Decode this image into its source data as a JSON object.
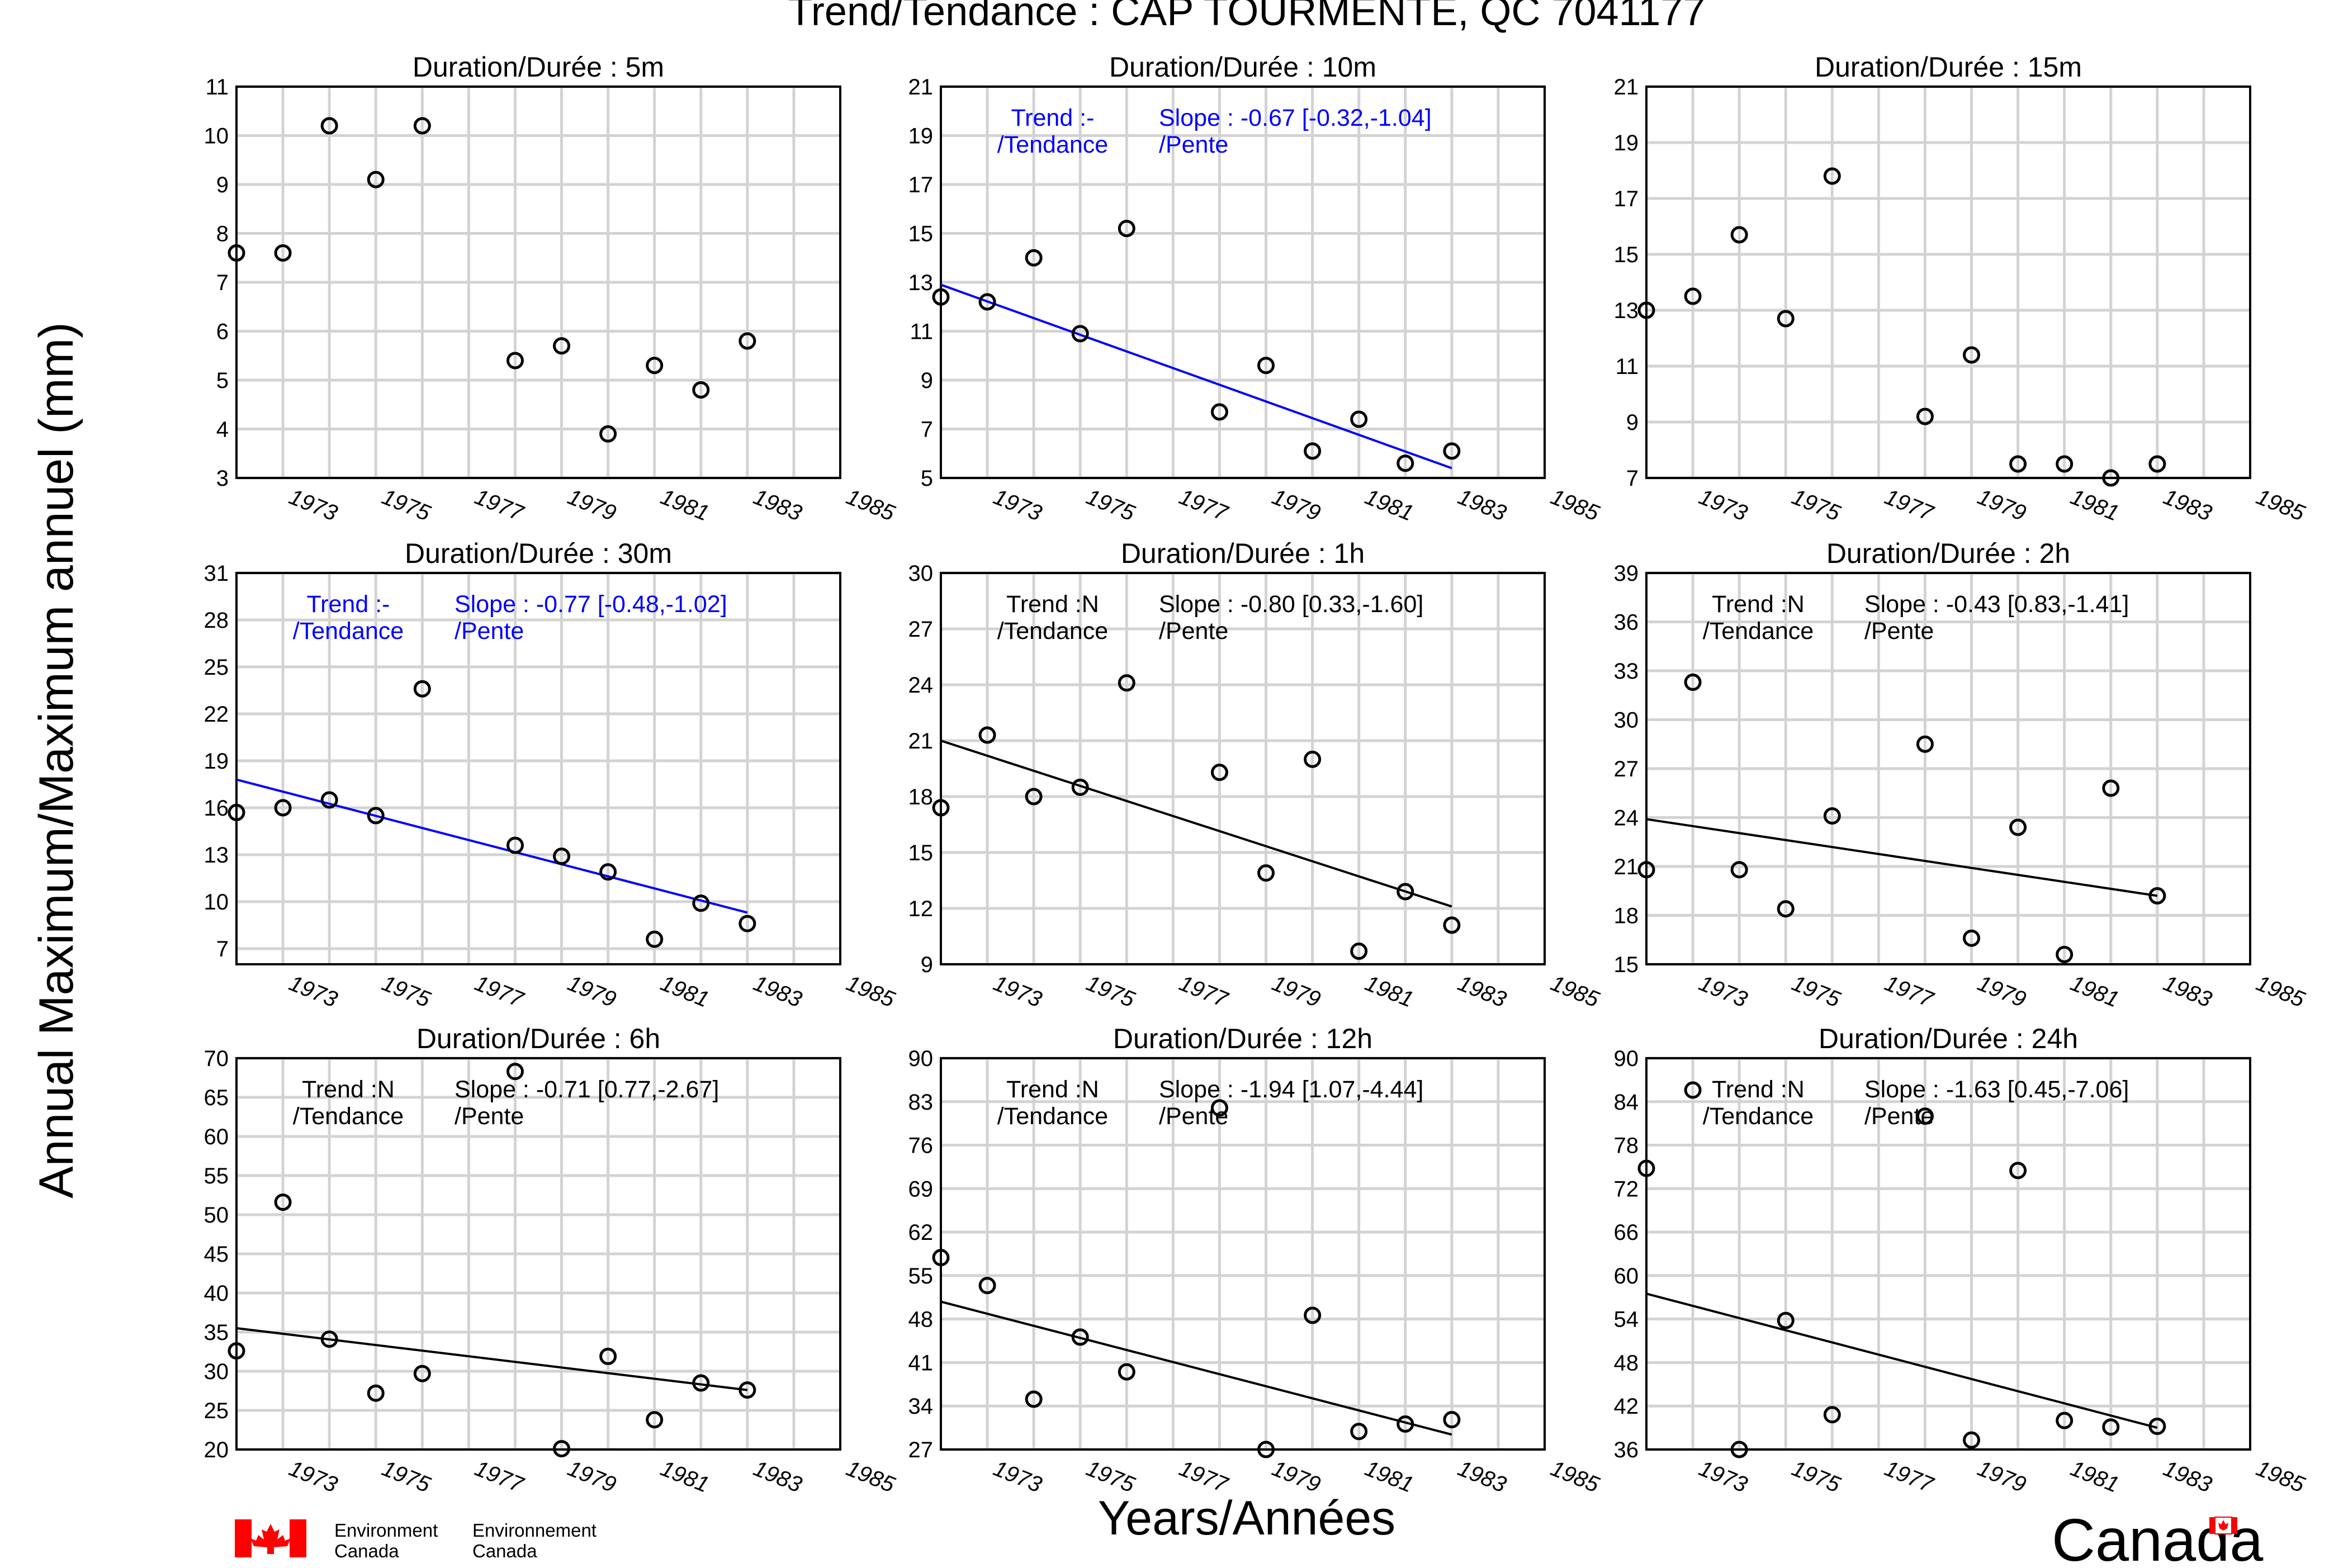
{
  "title": "Trend/Tendance : CAP TOURMENTE, QC  7041177",
  "ylabel": "Annual Maximum/Maximum annuel (mm)",
  "xlabel": "Years/Années",
  "x_ticks": [
    "1973",
    "1975",
    "1977",
    "1979",
    "1981",
    "1983",
    "1985"
  ],
  "footer": {
    "dept_en_1": "Environment",
    "dept_en_2": "Canada",
    "dept_fr_1": "Environnement",
    "dept_fr_2": "Canada",
    "wordmark": "Canada"
  },
  "colors": {
    "trend_significant": "#0000ff",
    "trend_ns": "#000000",
    "grid": "#d3d3d3",
    "flag_red": "#ff0000"
  },
  "chart_data": [
    {
      "type": "scatter",
      "title": "Duration/Durée : 5m",
      "xlim": [
        1972,
        1985
      ],
      "ylim": [
        3,
        11
      ],
      "yticks": [
        3,
        4,
        5,
        6,
        7,
        8,
        9,
        10,
        11
      ],
      "points": [
        [
          1972,
          7.6
        ],
        [
          1973,
          7.6
        ],
        [
          1974,
          10.2
        ],
        [
          1975,
          9.1
        ],
        [
          1976,
          10.2
        ],
        [
          1978,
          5.4
        ],
        [
          1979,
          5.7
        ],
        [
          1980,
          3.9
        ],
        [
          1981,
          5.3
        ],
        [
          1982,
          4.8
        ],
        [
          1983,
          5.8
        ]
      ],
      "trend": null
    },
    {
      "type": "scatter",
      "title": "Duration/Durée : 10m",
      "xlim": [
        1972,
        1985
      ],
      "ylim": [
        5,
        21
      ],
      "yticks": [
        5,
        7,
        9,
        11,
        13,
        15,
        17,
        19,
        21
      ],
      "points": [
        [
          1972,
          12.4
        ],
        [
          1973,
          12.2
        ],
        [
          1974,
          14.0
        ],
        [
          1975,
          10.9
        ],
        [
          1976,
          15.2
        ],
        [
          1978,
          7.7
        ],
        [
          1979,
          9.6
        ],
        [
          1980,
          6.1
        ],
        [
          1981,
          7.4
        ],
        [
          1982,
          5.6
        ],
        [
          1983,
          6.1
        ]
      ],
      "trend": {
        "label_1": "Trend :-",
        "label_2": "/Tendance",
        "slope_1": "Slope : -0.67 [-0.32,-1.04]",
        "slope_2": "/Pente",
        "significant": true,
        "y_start": 12.9,
        "y_end": 5.4
      }
    },
    {
      "type": "scatter",
      "title": "Duration/Durée : 15m",
      "xlim": [
        1972,
        1985
      ],
      "ylim": [
        7,
        21
      ],
      "yticks": [
        7,
        9,
        11,
        13,
        15,
        17,
        19,
        21
      ],
      "points": [
        [
          1972,
          13.0
        ],
        [
          1973,
          13.5
        ],
        [
          1974,
          15.7
        ],
        [
          1975,
          12.7
        ],
        [
          1976,
          17.8
        ],
        [
          1978,
          9.2
        ],
        [
          1979,
          11.4
        ],
        [
          1980,
          7.5
        ],
        [
          1981,
          7.5
        ],
        [
          1982,
          6.9
        ],
        [
          1983,
          7.5
        ]
      ],
      "trend": null
    },
    {
      "type": "scatter",
      "title": "Duration/Durée : 30m",
      "xlim": [
        1972,
        1985
      ],
      "ylim": [
        6,
        31
      ],
      "yticks": [
        7,
        10,
        13,
        16,
        19,
        22,
        25,
        28,
        31
      ],
      "points": [
        [
          1972,
          15.7
        ],
        [
          1973,
          16.0
        ],
        [
          1974,
          16.5
        ],
        [
          1975,
          15.5
        ],
        [
          1976,
          23.6
        ],
        [
          1978,
          13.6
        ],
        [
          1979,
          12.9
        ],
        [
          1980,
          11.9
        ],
        [
          1981,
          7.6
        ],
        [
          1982,
          9.9
        ],
        [
          1983,
          8.6
        ]
      ],
      "trend": {
        "label_1": "Trend :-",
        "label_2": "/Tendance",
        "slope_1": "Slope : -0.77 [-0.48,-1.02]",
        "slope_2": "/Pente",
        "significant": true,
        "y_start": 17.8,
        "y_end": 9.3
      }
    },
    {
      "type": "scatter",
      "title": "Duration/Durée : 1h",
      "xlim": [
        1972,
        1985
      ],
      "ylim": [
        9,
        30
      ],
      "yticks": [
        9,
        12,
        15,
        18,
        21,
        24,
        27,
        30
      ],
      "points": [
        [
          1972,
          17.4
        ],
        [
          1973,
          21.3
        ],
        [
          1974,
          18.0
        ],
        [
          1975,
          18.5
        ],
        [
          1976,
          24.1
        ],
        [
          1978,
          19.3
        ],
        [
          1979,
          13.9
        ],
        [
          1980,
          20.0
        ],
        [
          1981,
          9.7
        ],
        [
          1982,
          12.9
        ],
        [
          1983,
          11.1
        ]
      ],
      "trend": {
        "label_1": "Trend :N",
        "label_2": "/Tendance",
        "slope_1": "Slope : -0.80 [0.33,-1.60]",
        "slope_2": "/Pente",
        "significant": false,
        "y_start": 21.0,
        "y_end": 12.1
      }
    },
    {
      "type": "scatter",
      "title": "Duration/Durée : 2h",
      "xlim": [
        1972,
        1985
      ],
      "ylim": [
        15,
        39
      ],
      "yticks": [
        15,
        18,
        21,
        24,
        27,
        30,
        33,
        36,
        39
      ],
      "points": [
        [
          1972,
          20.8
        ],
        [
          1973,
          32.3
        ],
        [
          1974,
          20.8
        ],
        [
          1975,
          18.4
        ],
        [
          1976,
          24.1
        ],
        [
          1978,
          28.5
        ],
        [
          1979,
          16.6
        ],
        [
          1980,
          23.4
        ],
        [
          1981,
          15.6
        ],
        [
          1982,
          25.8
        ],
        [
          1983,
          19.2
        ]
      ],
      "trend": {
        "label_1": "Trend :N",
        "label_2": "/Tendance",
        "slope_1": "Slope : -0.43 [0.83,-1.41]",
        "slope_2": "/Pente",
        "significant": false,
        "y_start": 23.9,
        "y_end": 19.2
      }
    },
    {
      "type": "scatter",
      "title": "Duration/Durée : 6h",
      "xlim": [
        1972,
        1985
      ],
      "ylim": [
        20,
        70
      ],
      "yticks": [
        20,
        25,
        30,
        35,
        40,
        45,
        50,
        55,
        60,
        65,
        70
      ],
      "points": [
        [
          1972,
          32.6
        ],
        [
          1973,
          51.6
        ],
        [
          1974,
          34.1
        ],
        [
          1975,
          27.2
        ],
        [
          1976,
          29.7
        ],
        [
          1978,
          68.3
        ],
        [
          1979,
          20.1
        ],
        [
          1980,
          31.9
        ],
        [
          1981,
          23.8
        ],
        [
          1982,
          28.5
        ],
        [
          1983,
          27.6
        ]
      ],
      "trend": {
        "label_1": "Trend :N",
        "label_2": "/Tendance",
        "slope_1": "Slope : -0.71 [0.77,-2.67]",
        "slope_2": "/Pente",
        "significant": false,
        "y_start": 35.5,
        "y_end": 27.6
      }
    },
    {
      "type": "scatter",
      "title": "Duration/Durée : 12h",
      "xlim": [
        1972,
        1985
      ],
      "ylim": [
        27,
        90
      ],
      "yticks": [
        27,
        34,
        41,
        48,
        55,
        62,
        69,
        76,
        83,
        90
      ],
      "points": [
        [
          1972,
          57.9
        ],
        [
          1973,
          53.4
        ],
        [
          1974,
          35.1
        ],
        [
          1975,
          45.1
        ],
        [
          1976,
          39.5
        ],
        [
          1978,
          82.0
        ],
        [
          1979,
          26.6
        ],
        [
          1980,
          48.6
        ],
        [
          1981,
          29.9
        ],
        [
          1982,
          31.1
        ],
        [
          1983,
          31.8
        ]
      ],
      "trend": {
        "label_1": "Trend :N",
        "label_2": "/Tendance",
        "slope_1": "Slope : -1.94 [1.07,-4.44]",
        "slope_2": "/Pente",
        "significant": false,
        "y_start": 50.8,
        "y_end": 29.4
      }
    },
    {
      "type": "scatter",
      "title": "Duration/Durée : 24h",
      "xlim": [
        1972,
        1985
      ],
      "ylim": [
        36,
        90
      ],
      "yticks": [
        36,
        42,
        48,
        54,
        60,
        66,
        72,
        78,
        84,
        90
      ],
      "points": [
        [
          1972,
          74.8
        ],
        [
          1973,
          85.6
        ],
        [
          1974,
          35.6
        ],
        [
          1975,
          53.8
        ],
        [
          1976,
          40.8
        ],
        [
          1978,
          82.0
        ],
        [
          1979,
          37.3
        ],
        [
          1980,
          74.5
        ],
        [
          1981,
          40.0
        ],
        [
          1982,
          39.1
        ],
        [
          1983,
          39.2
        ]
      ],
      "trend": {
        "label_1": "Trend :N",
        "label_2": "/Tendance",
        "slope_1": "Slope : -1.63 [0.45,-7.06]",
        "slope_2": "/Pente",
        "significant": false,
        "y_start": 57.5,
        "y_end": 39.0
      }
    }
  ]
}
